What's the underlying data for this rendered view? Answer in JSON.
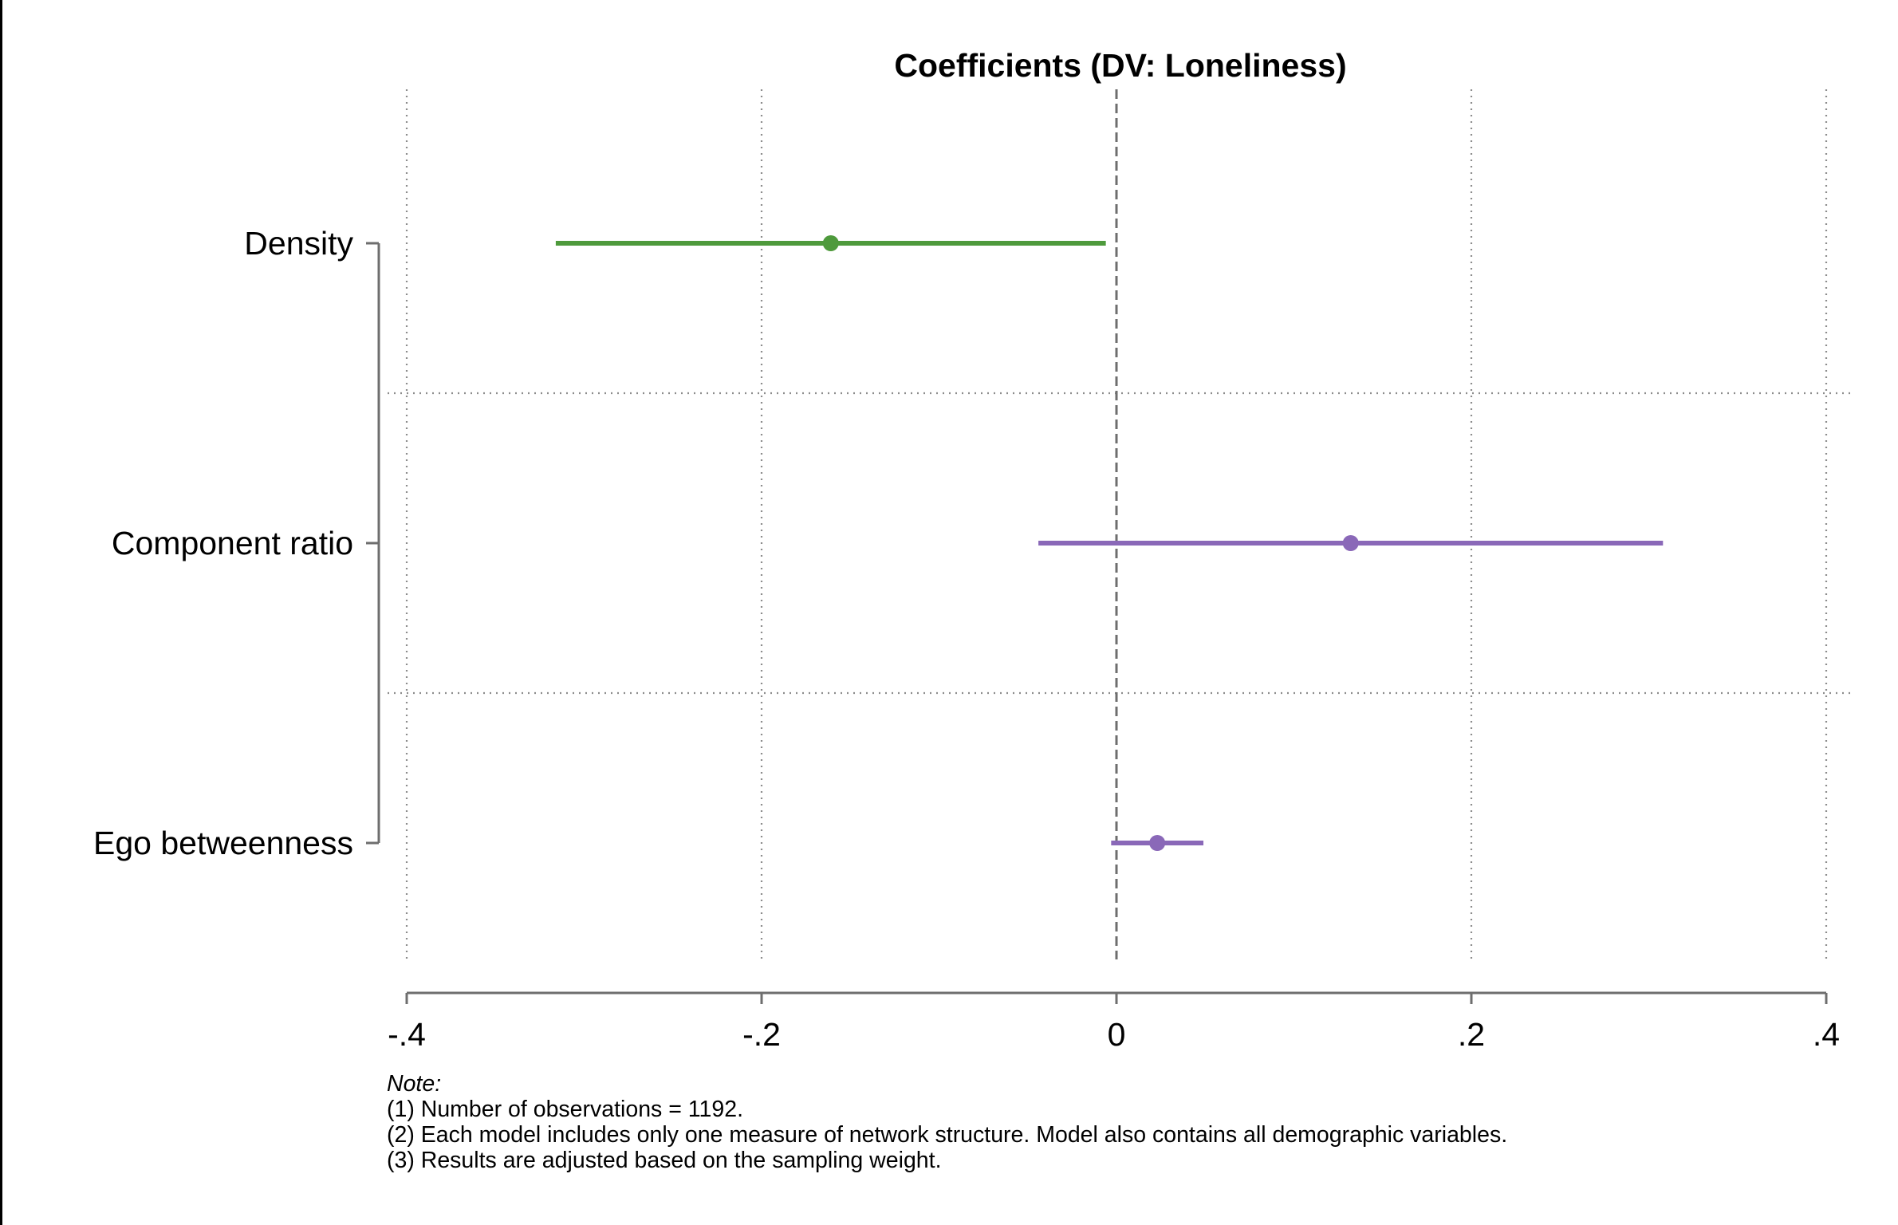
{
  "chart_data": {
    "type": "coefficient-plot",
    "title": "Coefficients (DV: Loneliness)",
    "xlabel": "",
    "ylabel": "",
    "xlim": [
      -0.4,
      0.4
    ],
    "x_ticks": [
      -0.4,
      -0.2,
      0,
      0.2,
      0.4
    ],
    "x_tick_labels": [
      "-.4",
      "-.2",
      "0",
      ".2",
      ".4"
    ],
    "reference_line": 0,
    "grid": true,
    "categories": [
      "Density",
      "Component ratio",
      "Ego betweenness"
    ],
    "series": [
      {
        "color": "#4e9a3c",
        "points": [
          {
            "category": "Density",
            "estimate": -0.161,
            "ci_low": -0.316,
            "ci_high": -0.006
          }
        ]
      },
      {
        "color": "#8a68b8",
        "points": [
          {
            "category": "Component ratio",
            "estimate": 0.132,
            "ci_low": -0.044,
            "ci_high": 0.308
          },
          {
            "category": "Ego betweenness",
            "estimate": 0.023,
            "ci_low": -0.003,
            "ci_high": 0.049
          }
        ]
      }
    ]
  },
  "notes": {
    "heading": "Note:",
    "lines": [
      "(1) Number of observations = 1192.",
      "(2) Each model includes only one measure of network structure. Model also contains all demographic variables.",
      "(3) Results are adjusted based on the sampling weight."
    ]
  }
}
